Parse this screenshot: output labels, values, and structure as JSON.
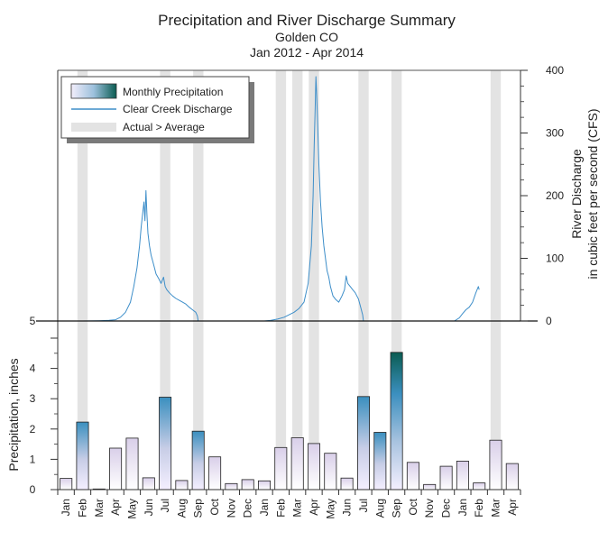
{
  "chart_data": {
    "type": "bar",
    "title": "Precipitation and River Discharge Summary",
    "subtitle_1": "Golden CO",
    "subtitle_2": "Jan 2012 - Apr 2014",
    "months": [
      "Jan",
      "Feb",
      "Mar",
      "Apr",
      "May",
      "Jun",
      "Jul",
      "Aug",
      "Sep",
      "Oct",
      "Nov",
      "Dec",
      "Jan",
      "Feb",
      "Mar",
      "Apr",
      "May",
      "Jun",
      "Jul",
      "Aug",
      "Sep",
      "Oct",
      "Nov",
      "Dec",
      "Jan",
      "Feb",
      "Mar",
      "Apr"
    ],
    "precipitation": [
      0.37,
      2.23,
      0.02,
      1.37,
      1.7,
      0.39,
      3.05,
      0.3,
      1.93,
      1.08,
      0.2,
      0.33,
      0.29,
      1.39,
      1.71,
      1.52,
      1.2,
      0.38,
      3.07,
      1.89,
      4.53,
      0.9,
      0.17,
      0.77,
      0.94,
      0.22,
      1.63,
      0.86
    ],
    "actual_gt_average": [
      false,
      true,
      false,
      false,
      false,
      false,
      true,
      false,
      true,
      false,
      false,
      false,
      false,
      true,
      true,
      true,
      false,
      false,
      true,
      false,
      true,
      false,
      false,
      false,
      false,
      false,
      true,
      false
    ],
    "precip_ylabel": "Precipitation, inches",
    "precip_ylim": [
      0,
      5
    ],
    "precip_ticks": [
      "0",
      "1",
      "2",
      "3",
      "4",
      "5"
    ],
    "discharge_ylabel_1": "River Discharge",
    "discharge_ylabel_2": "in cubic feet per second (CFS)",
    "discharge_ylim": [
      0,
      400
    ],
    "discharge_ticks": [
      "0",
      "100",
      "200",
      "300",
      "400"
    ],
    "discharge_series": [
      [
        0,
        0
      ],
      [
        1,
        0
      ],
      [
        2,
        0.5
      ],
      [
        2.6,
        1
      ],
      [
        3,
        2
      ],
      [
        3.3,
        6
      ],
      [
        3.6,
        14
      ],
      [
        3.9,
        30
      ],
      [
        4.1,
        55
      ],
      [
        4.3,
        85
      ],
      [
        4.45,
        120
      ],
      [
        4.55,
        150
      ],
      [
        4.65,
        175
      ],
      [
        4.72,
        190
      ],
      [
        4.78,
        160
      ],
      [
        4.84,
        208
      ],
      [
        4.9,
        170
      ],
      [
        4.96,
        140
      ],
      [
        5.05,
        120
      ],
      [
        5.15,
        105
      ],
      [
        5.3,
        90
      ],
      [
        5.45,
        75
      ],
      [
        5.6,
        68
      ],
      [
        5.75,
        60
      ],
      [
        5.9,
        70
      ],
      [
        6.0,
        55
      ],
      [
        6.1,
        50
      ],
      [
        6.25,
        45
      ],
      [
        6.45,
        40
      ],
      [
        6.65,
        36
      ],
      [
        6.85,
        33
      ],
      [
        7.05,
        30
      ],
      [
        7.25,
        27
      ],
      [
        7.45,
        22
      ],
      [
        7.65,
        18
      ],
      [
        7.85,
        14
      ],
      [
        7.95,
        8
      ],
      [
        8.0,
        0
      ],
      [
        9,
        0
      ],
      [
        10,
        0
      ],
      [
        11,
        0
      ],
      [
        12,
        0
      ],
      [
        12.4,
        1
      ],
      [
        12.8,
        3
      ],
      [
        13.2,
        6
      ],
      [
        13.5,
        10
      ],
      [
        13.8,
        14
      ],
      [
        14.1,
        20
      ],
      [
        14.4,
        30
      ],
      [
        14.65,
        60
      ],
      [
        14.85,
        120
      ],
      [
        14.95,
        200
      ],
      [
        15.02,
        280
      ],
      [
        15.08,
        340
      ],
      [
        15.12,
        390
      ],
      [
        15.17,
        360
      ],
      [
        15.22,
        320
      ],
      [
        15.3,
        250
      ],
      [
        15.4,
        190
      ],
      [
        15.5,
        150
      ],
      [
        15.6,
        120
      ],
      [
        15.7,
        100
      ],
      [
        15.8,
        80
      ],
      [
        15.9,
        70
      ],
      [
        16.0,
        55
      ],
      [
        16.15,
        40
      ],
      [
        16.3,
        35
      ],
      [
        16.5,
        30
      ],
      [
        16.7,
        40
      ],
      [
        16.85,
        50
      ],
      [
        16.95,
        72
      ],
      [
        17.05,
        60
      ],
      [
        17.2,
        55
      ],
      [
        17.35,
        50
      ],
      [
        17.5,
        45
      ],
      [
        17.7,
        35
      ],
      [
        17.85,
        20
      ],
      [
        17.95,
        10
      ],
      [
        18.0,
        0
      ],
      [
        19,
        0
      ],
      [
        20,
        0
      ],
      [
        21,
        0
      ],
      [
        22,
        0
      ],
      [
        23,
        0
      ],
      [
        23.5,
        0
      ],
      [
        23.8,
        5
      ],
      [
        24.0,
        12
      ],
      [
        24.2,
        18
      ],
      [
        24.4,
        22
      ],
      [
        24.6,
        30
      ],
      [
        24.8,
        45
      ],
      [
        24.95,
        55
      ],
      [
        25,
        50
      ]
    ],
    "legend": {
      "monthly_precipitation": "Monthly Precipitation",
      "discharge": "Clear Creek Discharge",
      "actual_gt_average": "Actual > Average"
    },
    "colors": {
      "bar_top_high": "#0a5c52",
      "bar_top_mid": "#3a8fbf",
      "bar_bottom": "#ffffff",
      "bar_mid": "#d2c9e8",
      "discharge_line": "#3d8ec9",
      "shade": "#e3e3e3"
    }
  }
}
